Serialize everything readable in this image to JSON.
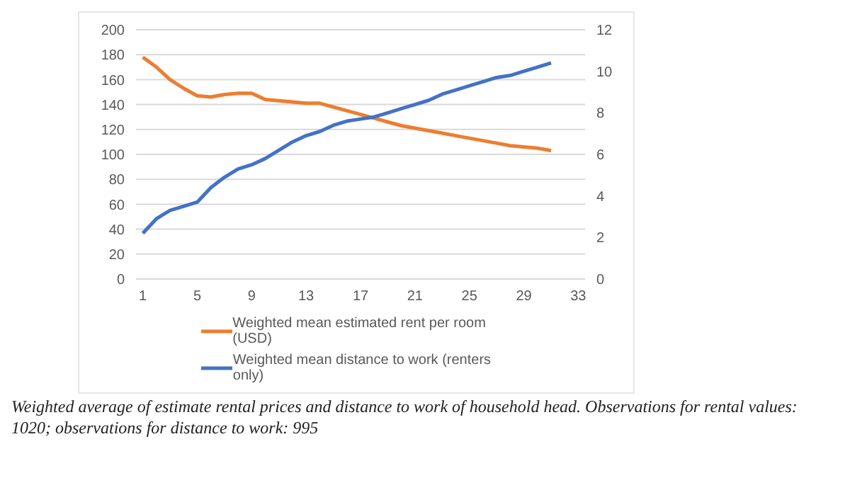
{
  "chart_data": {
    "type": "line",
    "x": [
      1,
      2,
      3,
      4,
      5,
      6,
      7,
      8,
      9,
      10,
      11,
      12,
      13,
      14,
      15,
      16,
      17,
      18,
      19,
      20,
      21,
      22,
      23,
      24,
      25,
      26,
      27,
      28,
      29,
      30,
      31
    ],
    "series": [
      {
        "name": "Weighted mean estimated rent per room (USD)",
        "color": "#ed7d31",
        "values": [
          178,
          170,
          160,
          153,
          147,
          146,
          148,
          149,
          149,
          144,
          143,
          142,
          141,
          141,
          138,
          135,
          132,
          129,
          126,
          123,
          121,
          119,
          117,
          115,
          113,
          111,
          109,
          107,
          106,
          105,
          103
        ]
      },
      {
        "name": "Weighted mean distance to work (renters only)",
        "color": "#4472c4",
        "axis": "y2",
        "values": [
          2.2,
          2.9,
          3.3,
          3.5,
          3.7,
          4.4,
          4.9,
          5.3,
          5.5,
          5.8,
          6.2,
          6.6,
          6.9,
          7.1,
          7.4,
          7.6,
          7.7,
          7.8,
          8.0,
          8.2,
          8.4,
          8.6,
          8.9,
          9.1,
          9.3,
          9.5,
          9.7,
          9.8,
          10.0,
          10.2,
          10.4
        ]
      }
    ],
    "xlim": [
      0.5,
      33.5
    ],
    "xticks": [
      1,
      5,
      9,
      13,
      17,
      21,
      25,
      29,
      33
    ],
    "ylim": [
      0,
      200
    ],
    "yticks": [
      0,
      20,
      40,
      60,
      80,
      100,
      120,
      140,
      160,
      180,
      200
    ],
    "y2lim": [
      0,
      12
    ],
    "y2ticks": [
      0,
      2,
      4,
      6,
      8,
      10,
      12
    ],
    "grid": "y",
    "legend": "bottom",
    "marker": "none",
    "line_style": "solid",
    "annotations": [
      "Weighted average of estimate rental prices and distance to work of household head. Observations for rental values: 1020; observations for distance to work: 995"
    ]
  }
}
